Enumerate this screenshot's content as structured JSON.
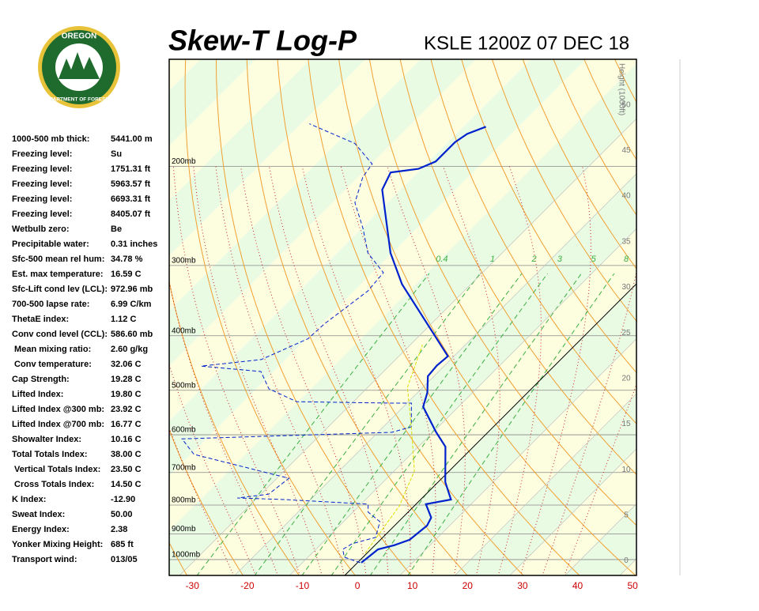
{
  "header": {
    "title": "Skew-T Log-P",
    "station": "KSLE 1200Z 07 DEC 18"
  },
  "logo": {
    "top": "OREGON",
    "bottom": "DEPARTMENT OF FORESTRY"
  },
  "indices": [
    [
      "1000-500 mb thick:",
      "5441.00 m"
    ],
    [
      "Freezing level:",
      "Su"
    ],
    [
      "Freezing level:",
      "1751.31 ft"
    ],
    [
      "Freezing level:",
      "5963.57 ft"
    ],
    [
      "Freezing level:",
      "6693.31 ft"
    ],
    [
      "Freezing level:",
      "8405.07 ft"
    ],
    [
      "Wetbulb zero:",
      "Be"
    ],
    [
      "Precipitable water:",
      "0.31 inches"
    ],
    [
      "Sfc-500 mean rel hum:",
      "34.78 %"
    ],
    [
      "Est. max temperature:",
      "16.59 C"
    ],
    [
      "Sfc-Lift cond lev (LCL):",
      "972.96 mb"
    ],
    [
      "700-500 lapse rate:",
      "6.99 C/km"
    ],
    [
      "ThetaE index:",
      "1.12 C"
    ],
    [
      "Conv cond level (CCL):",
      "586.60 mb"
    ],
    [
      " Mean mixing ratio:",
      "2.60 g/kg"
    ],
    [
      " Conv temperature:",
      "32.06 C"
    ],
    [
      "Cap Strength:",
      "19.28 C"
    ],
    [
      "Lifted Index:",
      "19.80 C"
    ],
    [
      "Lifted Index @300 mb:",
      "23.92 C"
    ],
    [
      "Lifted Index @700 mb:",
      "16.77 C"
    ],
    [
      "Showalter Index:",
      "10.16 C"
    ],
    [
      "Total Totals Index:",
      "38.00 C"
    ],
    [
      " Vertical Totals Index:",
      "23.50 C"
    ],
    [
      " Cross Totals Index:",
      "14.50 C"
    ],
    [
      "K Index:",
      "-12.90"
    ],
    [
      "Sweat Index:",
      "50.00"
    ],
    [
      "Energy Index:",
      "2.38"
    ],
    [
      "Yonker Mixing Height:",
      "685 ft"
    ],
    [
      "Transport wind:",
      "013/05"
    ]
  ],
  "chart_data": {
    "type": "skew-t",
    "xlim": [
      -34.2,
      50.7
    ],
    "xticks": [
      -30,
      -20,
      -10,
      0,
      10,
      20,
      30,
      40,
      50
    ],
    "plim": [
      1067,
      129
    ],
    "pticks": [
      {
        "value": 200,
        "label": "200mb"
      },
      {
        "value": 300,
        "label": "300mb"
      },
      {
        "value": 400,
        "label": "400mb"
      },
      {
        "value": 500,
        "label": "500mb"
      },
      {
        "value": 600,
        "label": "600mb"
      },
      {
        "value": 700,
        "label": "700mb"
      },
      {
        "value": 800,
        "label": "800mb"
      },
      {
        "value": 900,
        "label": "900mb"
      },
      {
        "value": 1000,
        "label": "1000mb"
      }
    ],
    "height_axis": {
      "label": "Height (1000ft)",
      "lim": [
        -1.6,
        55
      ],
      "ticks": [
        0,
        5,
        10,
        15,
        20,
        25,
        30,
        35,
        40,
        45,
        50
      ]
    },
    "mixing_ratios": [
      0.4,
      1,
      2,
      3,
      5,
      8
    ],
    "series": [
      {
        "name": "temperature",
        "color": "#0022cc",
        "pressure": [
          1013,
          959,
          943,
          922,
          870,
          842,
          797,
          782,
          728,
          630,
          593,
          535,
          505,
          472,
          452,
          435,
          324,
          285,
          220,
          205,
          202,
          196,
          190,
          181,
          175,
          170
        ],
        "values": [
          0.7,
          1.3,
          3.5,
          5.3,
          5.9,
          5.2,
          1.8,
          5.5,
          1.3,
          -5.1,
          -9.5,
          -16.4,
          -18.2,
          -21.1,
          -21.4,
          -21.1,
          -42.5,
          -50.3,
          -63.3,
          -64.9,
          -60.5,
          -58.7,
          -58.7,
          -58.7,
          -58,
          -55.9
        ]
      },
      {
        "name": "dewpoint",
        "color": "#0022cc",
        "pressure": [
          1013,
          990,
          959,
          937,
          913,
          856,
          823,
          797,
          782,
          777,
          765,
          717,
          650,
          610,
          594,
          581,
          527,
          527,
          524,
          497,
          463,
          453,
          441,
          405,
          381,
          333,
          309,
          285,
          258,
          232,
          209,
          198,
          182,
          168
        ],
        "values": [
          0.5,
          -3.4,
          -5.1,
          -4.4,
          -1.3,
          -3.4,
          -7.3,
          -8.7,
          -24.7,
          -33.6,
          -28.6,
          -27.8,
          -49.4,
          -54.4,
          -17.5,
          -14.9,
          -19.2,
          -22.8,
          -40.3,
          -47.7,
          -52.3,
          -64.1,
          -54.4,
          -49.7,
          -49.4,
          -47.5,
          -48,
          -54.4,
          -59.7,
          -65.9,
          -69.1,
          -69.8,
          -76.7,
          -88.5
        ]
      },
      {
        "name": "wetbulb",
        "color": "#dddd00",
        "pressure": [
          974,
          937,
          803,
          696,
          581,
          494,
          415
        ],
        "values": [
          -0.3,
          -0.8,
          -2.7,
          -6.3,
          -14.9,
          -22.8,
          -27.8
        ]
      }
    ]
  }
}
